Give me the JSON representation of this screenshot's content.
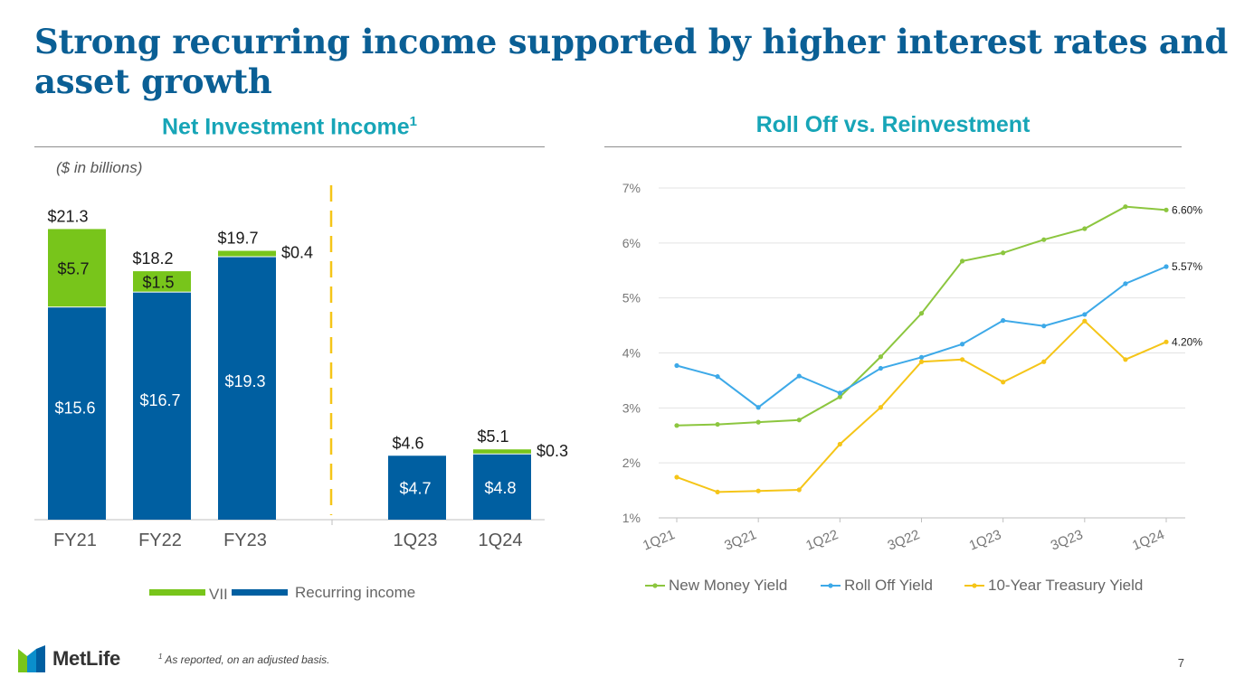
{
  "slide": {
    "title": "Strong recurring income supported by higher interest rates and asset growth",
    "page_number": "7",
    "footnote_marker": "1",
    "footnote": "As reported, on an adjusted basis.",
    "logo_text": "MetLife"
  },
  "left_panel": {
    "title": "Net Investment Income",
    "title_superscript": "1",
    "units": "($ in billions)"
  },
  "right_panel": {
    "title": "Roll Off vs. Reinvestment"
  },
  "colors": {
    "title": "#0a5f95",
    "panel_title": "#17a5b7",
    "vii": "#78c51b",
    "recurring": "#005fa1",
    "new_money": "#8cc63f",
    "roll_off": "#3da9e8",
    "treasury": "#f5c518",
    "divider": "#f5c518"
  },
  "chart_data": [
    {
      "type": "bar",
      "stacked": true,
      "title": "Net Investment Income",
      "ylabel": "($ in billions)",
      "categories": [
        "FY21",
        "FY22",
        "FY23",
        "1Q23",
        "1Q24"
      ],
      "series": [
        {
          "name": "Recurring income",
          "values": [
            15.6,
            16.7,
            19.3,
            4.7,
            4.8
          ],
          "labels": [
            "$15.6",
            "$16.7",
            "$19.3",
            "$4.7",
            "$4.8"
          ]
        },
        {
          "name": "VII",
          "values": [
            5.7,
            1.5,
            0.4,
            -0.1,
            0.3
          ],
          "labels": [
            "$5.7",
            "$1.5",
            "$0.4",
            "",
            "$0.3"
          ]
        }
      ],
      "totals": [
        "$21.3",
        "$18.2",
        "$19.7",
        "$4.6",
        "$5.1"
      ],
      "legend": [
        "VII",
        "Recurring income"
      ],
      "legend_position": "bottom"
    },
    {
      "type": "line",
      "title": "Roll Off vs. Reinvestment",
      "x": [
        "1Q21",
        "2Q21",
        "3Q21",
        "4Q21",
        "1Q22",
        "2Q22",
        "3Q22",
        "4Q22",
        "1Q23",
        "2Q23",
        "3Q23",
        "4Q23",
        "1Q24"
      ],
      "x_tick_labels": [
        "1Q21",
        "3Q21",
        "1Q22",
        "3Q22",
        "1Q23",
        "3Q23",
        "1Q24"
      ],
      "y_ticks": [
        "1%",
        "2%",
        "3%",
        "4%",
        "5%",
        "6%",
        "7%"
      ],
      "ylim": [
        1,
        7
      ],
      "series": [
        {
          "name": "New Money Yield",
          "values": [
            2.68,
            2.7,
            2.74,
            2.78,
            3.2,
            3.93,
            4.72,
            5.67,
            5.82,
            6.06,
            6.26,
            6.66,
            6.6
          ],
          "end_label": "6.60%"
        },
        {
          "name": "Roll Off Yield",
          "values": [
            3.77,
            3.57,
            3.01,
            3.58,
            3.27,
            3.72,
            3.92,
            4.16,
            4.59,
            4.49,
            4.7,
            5.26,
            5.57
          ],
          "end_label": "5.57%"
        },
        {
          "name": "10-Year Treasury Yield",
          "values": [
            1.74,
            1.47,
            1.49,
            1.51,
            2.34,
            3.01,
            3.84,
            3.88,
            3.47,
            3.84,
            4.58,
            3.88,
            4.2
          ],
          "end_label": "4.20%"
        }
      ],
      "legend_position": "bottom"
    }
  ]
}
